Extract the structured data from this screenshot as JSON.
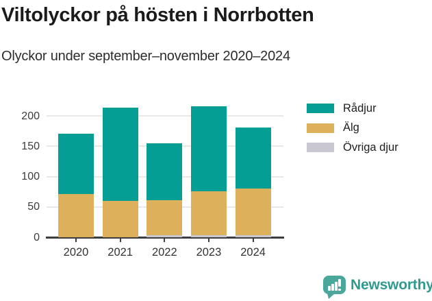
{
  "header": {
    "title": "Viltolyckor på hösten i Norrbotten",
    "subtitle": "Olyckor under september–november 2020–2024"
  },
  "chart_data": {
    "type": "bar",
    "stacked": true,
    "title": "Viltolyckor på hösten i Norrbotten",
    "subtitle": "Olyckor under september–november 2020–2024",
    "categories": [
      "2020",
      "2021",
      "2022",
      "2023",
      "2024"
    ],
    "series": [
      {
        "name": "Rådjur",
        "color": "#049e94",
        "values": [
          99,
          153,
          93,
          140,
          100
        ]
      },
      {
        "name": "Älg",
        "color": "#ddb05c",
        "values": [
          72,
          61,
          58,
          72,
          77
        ]
      },
      {
        "name": "Övriga djur",
        "color": "#c9c7d2",
        "values": [
          0,
          0,
          4,
          4,
          4
        ]
      }
    ],
    "totals": [
      171,
      214,
      155,
      216,
      181
    ],
    "yticks": [
      0,
      50,
      100,
      150,
      200
    ],
    "ylim": [
      0,
      234
    ],
    "xlabel": "",
    "ylabel": "",
    "grid": true,
    "legend_position": "right",
    "axis_color": "#3d3d3d",
    "grid_color": "#e8e8e8"
  },
  "footer": {
    "brand": "Newsworthy",
    "brand_color": "#2f9a8f",
    "icon": "bar-chart-bubble-icon",
    "icon_color": "#4ba69b"
  }
}
